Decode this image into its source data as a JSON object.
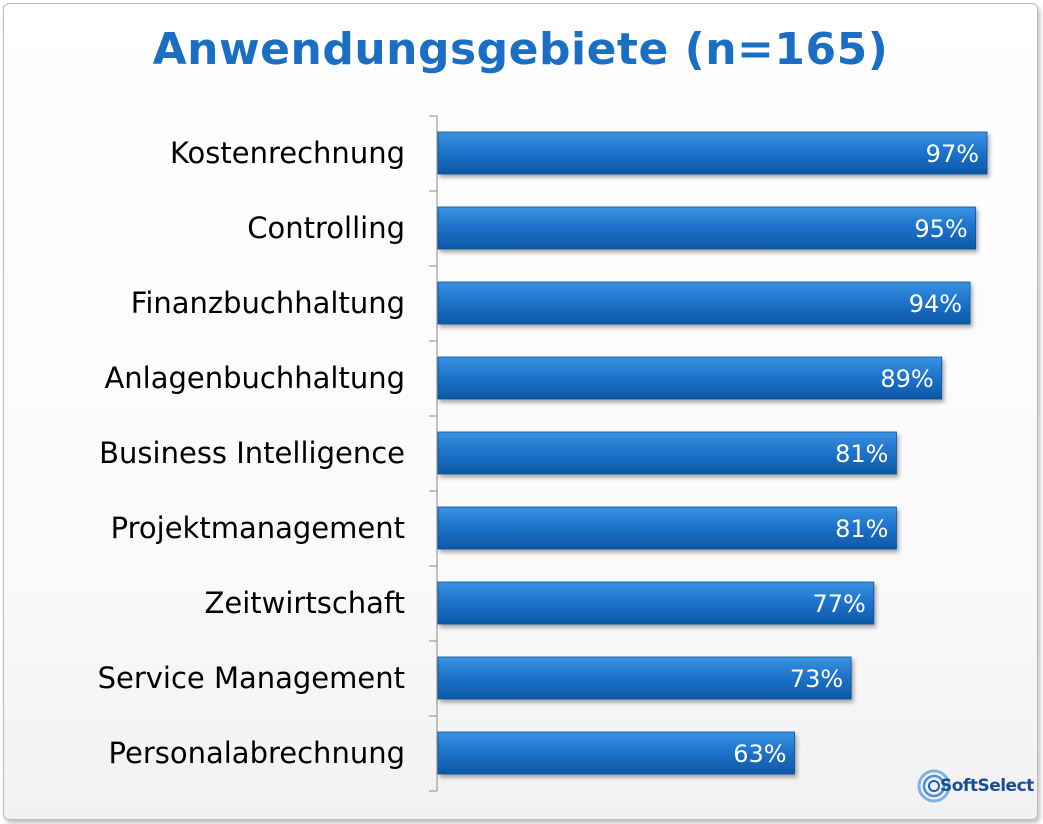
{
  "chart_data": {
    "type": "bar",
    "orientation": "horizontal",
    "title": "Anwendungsgebiete (n=165)",
    "categories": [
      "Kostenrechnung",
      "Controlling",
      "Finanzbuchhaltung",
      "Anlagenbuchhaltung",
      "Business Intelligence",
      "Projektmanagement",
      "Zeitwirtschaft",
      "Service Management",
      "Personalabrechnung"
    ],
    "values": [
      97,
      95,
      94,
      89,
      81,
      81,
      77,
      73,
      63
    ],
    "value_labels": [
      "97%",
      "95%",
      "94%",
      "89%",
      "81%",
      "81%",
      "77%",
      "73%",
      "63%"
    ],
    "xlim": [
      0,
      100
    ],
    "xlabel": "",
    "ylabel": "",
    "grid": false,
    "bar_color": "#1a6fc4"
  },
  "logo": {
    "text": "SoftSelect"
  },
  "colors": {
    "title": "#1a6fc4",
    "bar_top": "#2b86dc",
    "bar_bottom": "#0c5aa8"
  }
}
